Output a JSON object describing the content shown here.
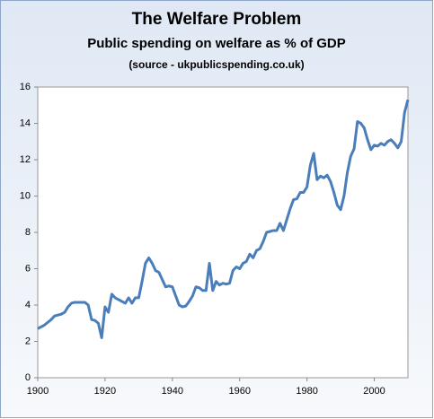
{
  "chart_data": {
    "type": "line",
    "title": "The Welfare Problem",
    "subtitle": "Public spending on welfare as % of GDP",
    "source": "(source - ukpublicspending.co.uk)",
    "x": [
      1900,
      1902,
      1904,
      1905,
      1907,
      1908,
      1909,
      1910,
      1911,
      1914,
      1915,
      1916,
      1917,
      1918,
      1919,
      1920,
      1921,
      1922,
      1923,
      1925,
      1926,
      1927,
      1928,
      1929,
      1930,
      1931,
      1932,
      1933,
      1934,
      1935,
      1936,
      1937,
      1938,
      1939,
      1940,
      1941,
      1942,
      1943,
      1944,
      1945,
      1946,
      1947,
      1948,
      1949,
      1950,
      1951,
      1952,
      1953,
      1954,
      1955,
      1956,
      1957,
      1958,
      1959,
      1960,
      1961,
      1962,
      1963,
      1964,
      1965,
      1966,
      1967,
      1968,
      1969,
      1970,
      1971,
      1972,
      1973,
      1974,
      1975,
      1976,
      1977,
      1978,
      1979,
      1980,
      1981,
      1982,
      1983,
      1984,
      1985,
      1986,
      1987,
      1988,
      1989,
      1990,
      1991,
      1992,
      1993,
      1994,
      1995,
      1996,
      1997,
      1998,
      1999,
      2000,
      2001,
      2002,
      2003,
      2004,
      2005,
      2006,
      2007,
      2008,
      2009,
      2010
    ],
    "values": [
      2.7,
      2.9,
      3.2,
      3.4,
      3.5,
      3.6,
      3.9,
      4.1,
      4.15,
      4.15,
      4.0,
      3.2,
      3.15,
      3.0,
      2.2,
      3.9,
      3.6,
      4.6,
      4.4,
      4.2,
      4.1,
      4.4,
      4.1,
      4.4,
      4.4,
      5.3,
      6.3,
      6.6,
      6.3,
      5.9,
      5.8,
      5.4,
      5.0,
      5.05,
      5.0,
      4.5,
      4.0,
      3.9,
      3.95,
      4.2,
      4.5,
      5.0,
      4.95,
      4.8,
      4.8,
      6.3,
      4.8,
      5.3,
      5.1,
      5.2,
      5.15,
      5.2,
      5.9,
      6.1,
      6.0,
      6.3,
      6.4,
      6.8,
      6.6,
      7.0,
      7.1,
      7.5,
      8.0,
      8.05,
      8.1,
      8.1,
      8.5,
      8.1,
      8.7,
      9.3,
      9.8,
      9.85,
      10.2,
      10.2,
      10.5,
      11.7,
      12.35,
      10.9,
      11.1,
      11.0,
      11.15,
      10.8,
      10.2,
      9.5,
      9.25,
      10.0,
      11.3,
      12.2,
      12.6,
      14.1,
      14.0,
      13.75,
      13.1,
      12.55,
      12.8,
      12.75,
      12.9,
      12.8,
      13.0,
      13.1,
      12.9,
      12.65,
      13.0,
      14.6,
      15.3
    ],
    "color": "#4a7ebb",
    "xlim": [
      1900,
      2010
    ],
    "xticks": [
      1900,
      1920,
      1940,
      1960,
      1980,
      2000
    ],
    "ylim": [
      0,
      16
    ],
    "yticks": [
      0,
      2,
      4,
      6,
      8,
      10,
      12,
      14,
      16
    ]
  }
}
